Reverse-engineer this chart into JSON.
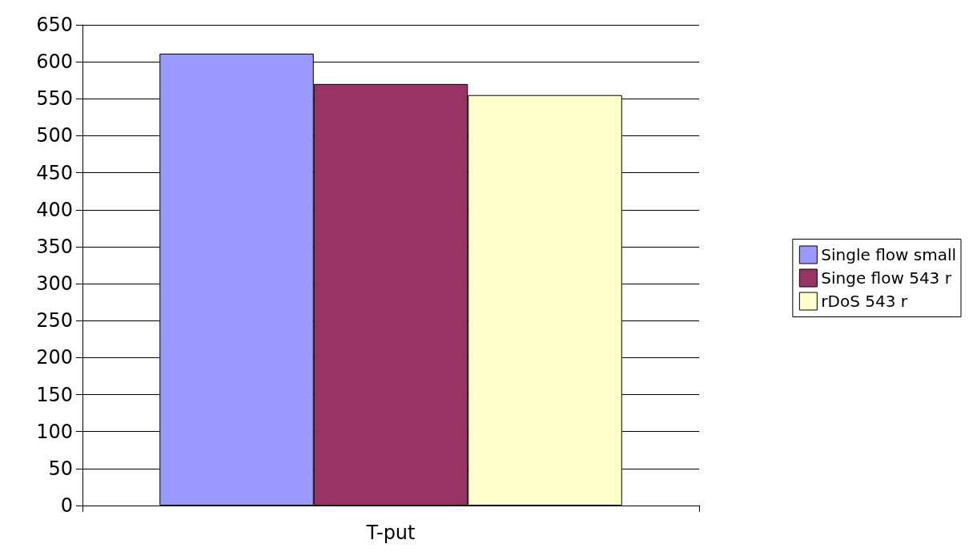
{
  "chart_data": {
    "type": "bar",
    "categories": [
      "T-put"
    ],
    "series": [
      {
        "name": "Single flow small",
        "color": "#9999ff",
        "values": [
          611
        ]
      },
      {
        "name": "Singe flow 543 r",
        "color": "#993366",
        "values": [
          570
        ]
      },
      {
        "name": "rDoS 543 r",
        "color": "#ffffcc",
        "values": [
          555
        ]
      }
    ],
    "ylim": [
      0,
      650
    ],
    "yticks": [
      0,
      50,
      100,
      150,
      200,
      250,
      300,
      350,
      400,
      450,
      500,
      550,
      600,
      650
    ],
    "grid": "y",
    "legend": "right"
  }
}
